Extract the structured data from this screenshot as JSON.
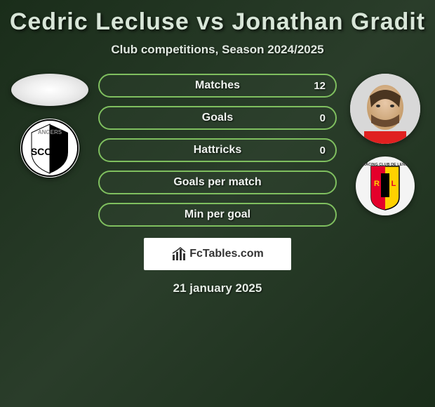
{
  "title": "Cedric Lecluse vs Jonathan Gradit",
  "subtitle": "Club competitions, Season 2024/2025",
  "date": "21 january 2025",
  "brand": "FcTables.com",
  "colors": {
    "bar_border": "#7fbf5f",
    "bar_fill": "rgba(50,70,50,0.35)",
    "title_color": "#d8e6d8"
  },
  "player1": {
    "name": "Cedric Lecluse",
    "club": "Angers SCO",
    "club_colors": {
      "primary": "#000000",
      "secondary": "#ffffff"
    }
  },
  "player2": {
    "name": "Jonathan Gradit",
    "club": "RC Lens",
    "club_colors": {
      "primary": "#e4002b",
      "secondary": "#ffd100"
    }
  },
  "stats": [
    {
      "label": "Matches",
      "p1": "",
      "p2": "12",
      "has_right": true
    },
    {
      "label": "Goals",
      "p1": "",
      "p2": "0",
      "has_right": true
    },
    {
      "label": "Hattricks",
      "p1": "",
      "p2": "0",
      "has_right": true
    },
    {
      "label": "Goals per match",
      "p1": "",
      "p2": "",
      "has_right": false
    },
    {
      "label": "Min per goal",
      "p1": "",
      "p2": "",
      "has_right": false
    }
  ]
}
